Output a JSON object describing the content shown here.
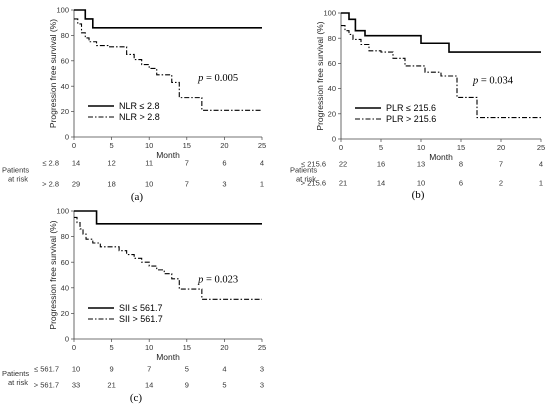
{
  "chart_data": [
    {
      "type": "line",
      "panel_label": "(a)",
      "xlabel": "Month",
      "ylabel": "Progression free survival (%)",
      "xlim": [
        0,
        25
      ],
      "ylim": [
        0,
        100
      ],
      "xticks": [
        0,
        5,
        10,
        15,
        20,
        25
      ],
      "yticks": [
        0,
        20,
        40,
        60,
        80,
        100
      ],
      "p_value_label": "p",
      "p_value": "= 0.005",
      "legend_position": "bottom-left",
      "series": [
        {
          "name": "NLR ≤ 2.8",
          "style": "solid",
          "x": [
            0,
            1.5,
            1.5,
            2.5,
            2.5,
            25
          ],
          "y": [
            100,
            100,
            93,
            93,
            86,
            86
          ]
        },
        {
          "name": "NLR > 2.8",
          "style": "dashdot",
          "x": [
            0,
            0.5,
            0.5,
            1,
            1,
            1.5,
            1.5,
            2,
            2,
            3,
            3,
            4.5,
            4.5,
            7,
            7,
            8,
            8,
            9,
            9,
            10,
            10,
            11,
            11,
            13,
            13,
            14,
            14,
            17,
            17,
            25
          ],
          "y": [
            93,
            93,
            89,
            89,
            82,
            82,
            78,
            78,
            75,
            75,
            72,
            72,
            71,
            71,
            65,
            65,
            61,
            61,
            57,
            57,
            54,
            54,
            49,
            49,
            43,
            43,
            31,
            31,
            21,
            21
          ]
        }
      ],
      "at_risk_header": [
        "Patients",
        "at risk"
      ],
      "at_risk": [
        {
          "label": "≤ 2.8",
          "counts": [
            14,
            12,
            11,
            7,
            6,
            4
          ]
        },
        {
          "label": "> 2.8",
          "counts": [
            29,
            18,
            10,
            7,
            3,
            1
          ]
        }
      ]
    },
    {
      "type": "line",
      "panel_label": "(b)",
      "xlabel": "Month",
      "ylabel": "Progression free survival (%)",
      "xlim": [
        0,
        25
      ],
      "ylim": [
        0,
        100
      ],
      "xticks": [
        0,
        5,
        10,
        15,
        20,
        25
      ],
      "yticks": [
        0,
        20,
        40,
        60,
        80,
        100
      ],
      "p_value_label": "p",
      "p_value": "= 0.034",
      "legend_position": "bottom-left",
      "series": [
        {
          "name": "PLR ≤ 215.6",
          "style": "solid",
          "x": [
            0,
            1,
            1,
            1.8,
            1.8,
            3,
            3,
            10,
            10,
            13.5,
            13.5,
            25
          ],
          "y": [
            100,
            100,
            95,
            95,
            86,
            86,
            82,
            82,
            76,
            76,
            69,
            69
          ]
        },
        {
          "name": "PLR > 215.6",
          "style": "dashdot",
          "x": [
            0,
            0.5,
            0.5,
            1,
            1,
            1.5,
            1.5,
            2.5,
            2.5,
            3.5,
            3.5,
            5,
            5,
            6.5,
            6.5,
            8,
            8,
            10.5,
            10.5,
            12.5,
            12.5,
            14.5,
            14.5,
            17,
            17,
            25
          ],
          "y": [
            90,
            90,
            86,
            86,
            83,
            83,
            79,
            79,
            75,
            75,
            70,
            70,
            69,
            69,
            64,
            64,
            58,
            58,
            53,
            53,
            50,
            50,
            33,
            33,
            17,
            17
          ]
        }
      ],
      "at_risk_header": [
        "Patients",
        "at risk"
      ],
      "at_risk": [
        {
          "label": "≤ 215.6",
          "counts": [
            22,
            16,
            13,
            8,
            7,
            4
          ]
        },
        {
          "label": "> 215.6",
          "counts": [
            21,
            14,
            10,
            6,
            2,
            1
          ]
        }
      ]
    },
    {
      "type": "line",
      "panel_label": "(c)",
      "xlabel": "Month",
      "ylabel": "Progression free survival (%)",
      "xlim": [
        0,
        25
      ],
      "ylim": [
        0,
        100
      ],
      "xticks": [
        0,
        5,
        10,
        15,
        20,
        25
      ],
      "yticks": [
        0,
        20,
        40,
        60,
        80,
        100
      ],
      "p_value_label": "p",
      "p_value": "= 0.023",
      "legend_position": "bottom-left",
      "series": [
        {
          "name": "SII ≤ 561.7",
          "style": "solid",
          "x": [
            0,
            3,
            3,
            25
          ],
          "y": [
            100,
            100,
            90,
            90
          ]
        },
        {
          "name": "SII > 561.7",
          "style": "dashdot",
          "x": [
            0,
            0.4,
            0.4,
            0.8,
            0.8,
            1.2,
            1.2,
            1.6,
            1.6,
            2.5,
            2.5,
            3.5,
            3.5,
            6,
            6,
            7,
            7,
            8,
            8,
            9,
            9,
            10,
            10,
            11,
            11,
            12,
            12,
            13,
            13,
            14,
            14,
            17,
            17,
            25
          ],
          "y": [
            95,
            95,
            91,
            91,
            86,
            86,
            82,
            82,
            78,
            78,
            75,
            75,
            72,
            72,
            69,
            69,
            66,
            66,
            63,
            63,
            60,
            60,
            57,
            57,
            54,
            54,
            51,
            51,
            47,
            47,
            39,
            39,
            31,
            31
          ]
        }
      ],
      "at_risk_header": [
        "Patients",
        "at risk"
      ],
      "at_risk": [
        {
          "label": "≤ 561.7",
          "counts": [
            10,
            9,
            7,
            5,
            4,
            3
          ]
        },
        {
          "label": "> 561.7",
          "counts": [
            33,
            21,
            14,
            9,
            5,
            3
          ]
        }
      ]
    }
  ]
}
